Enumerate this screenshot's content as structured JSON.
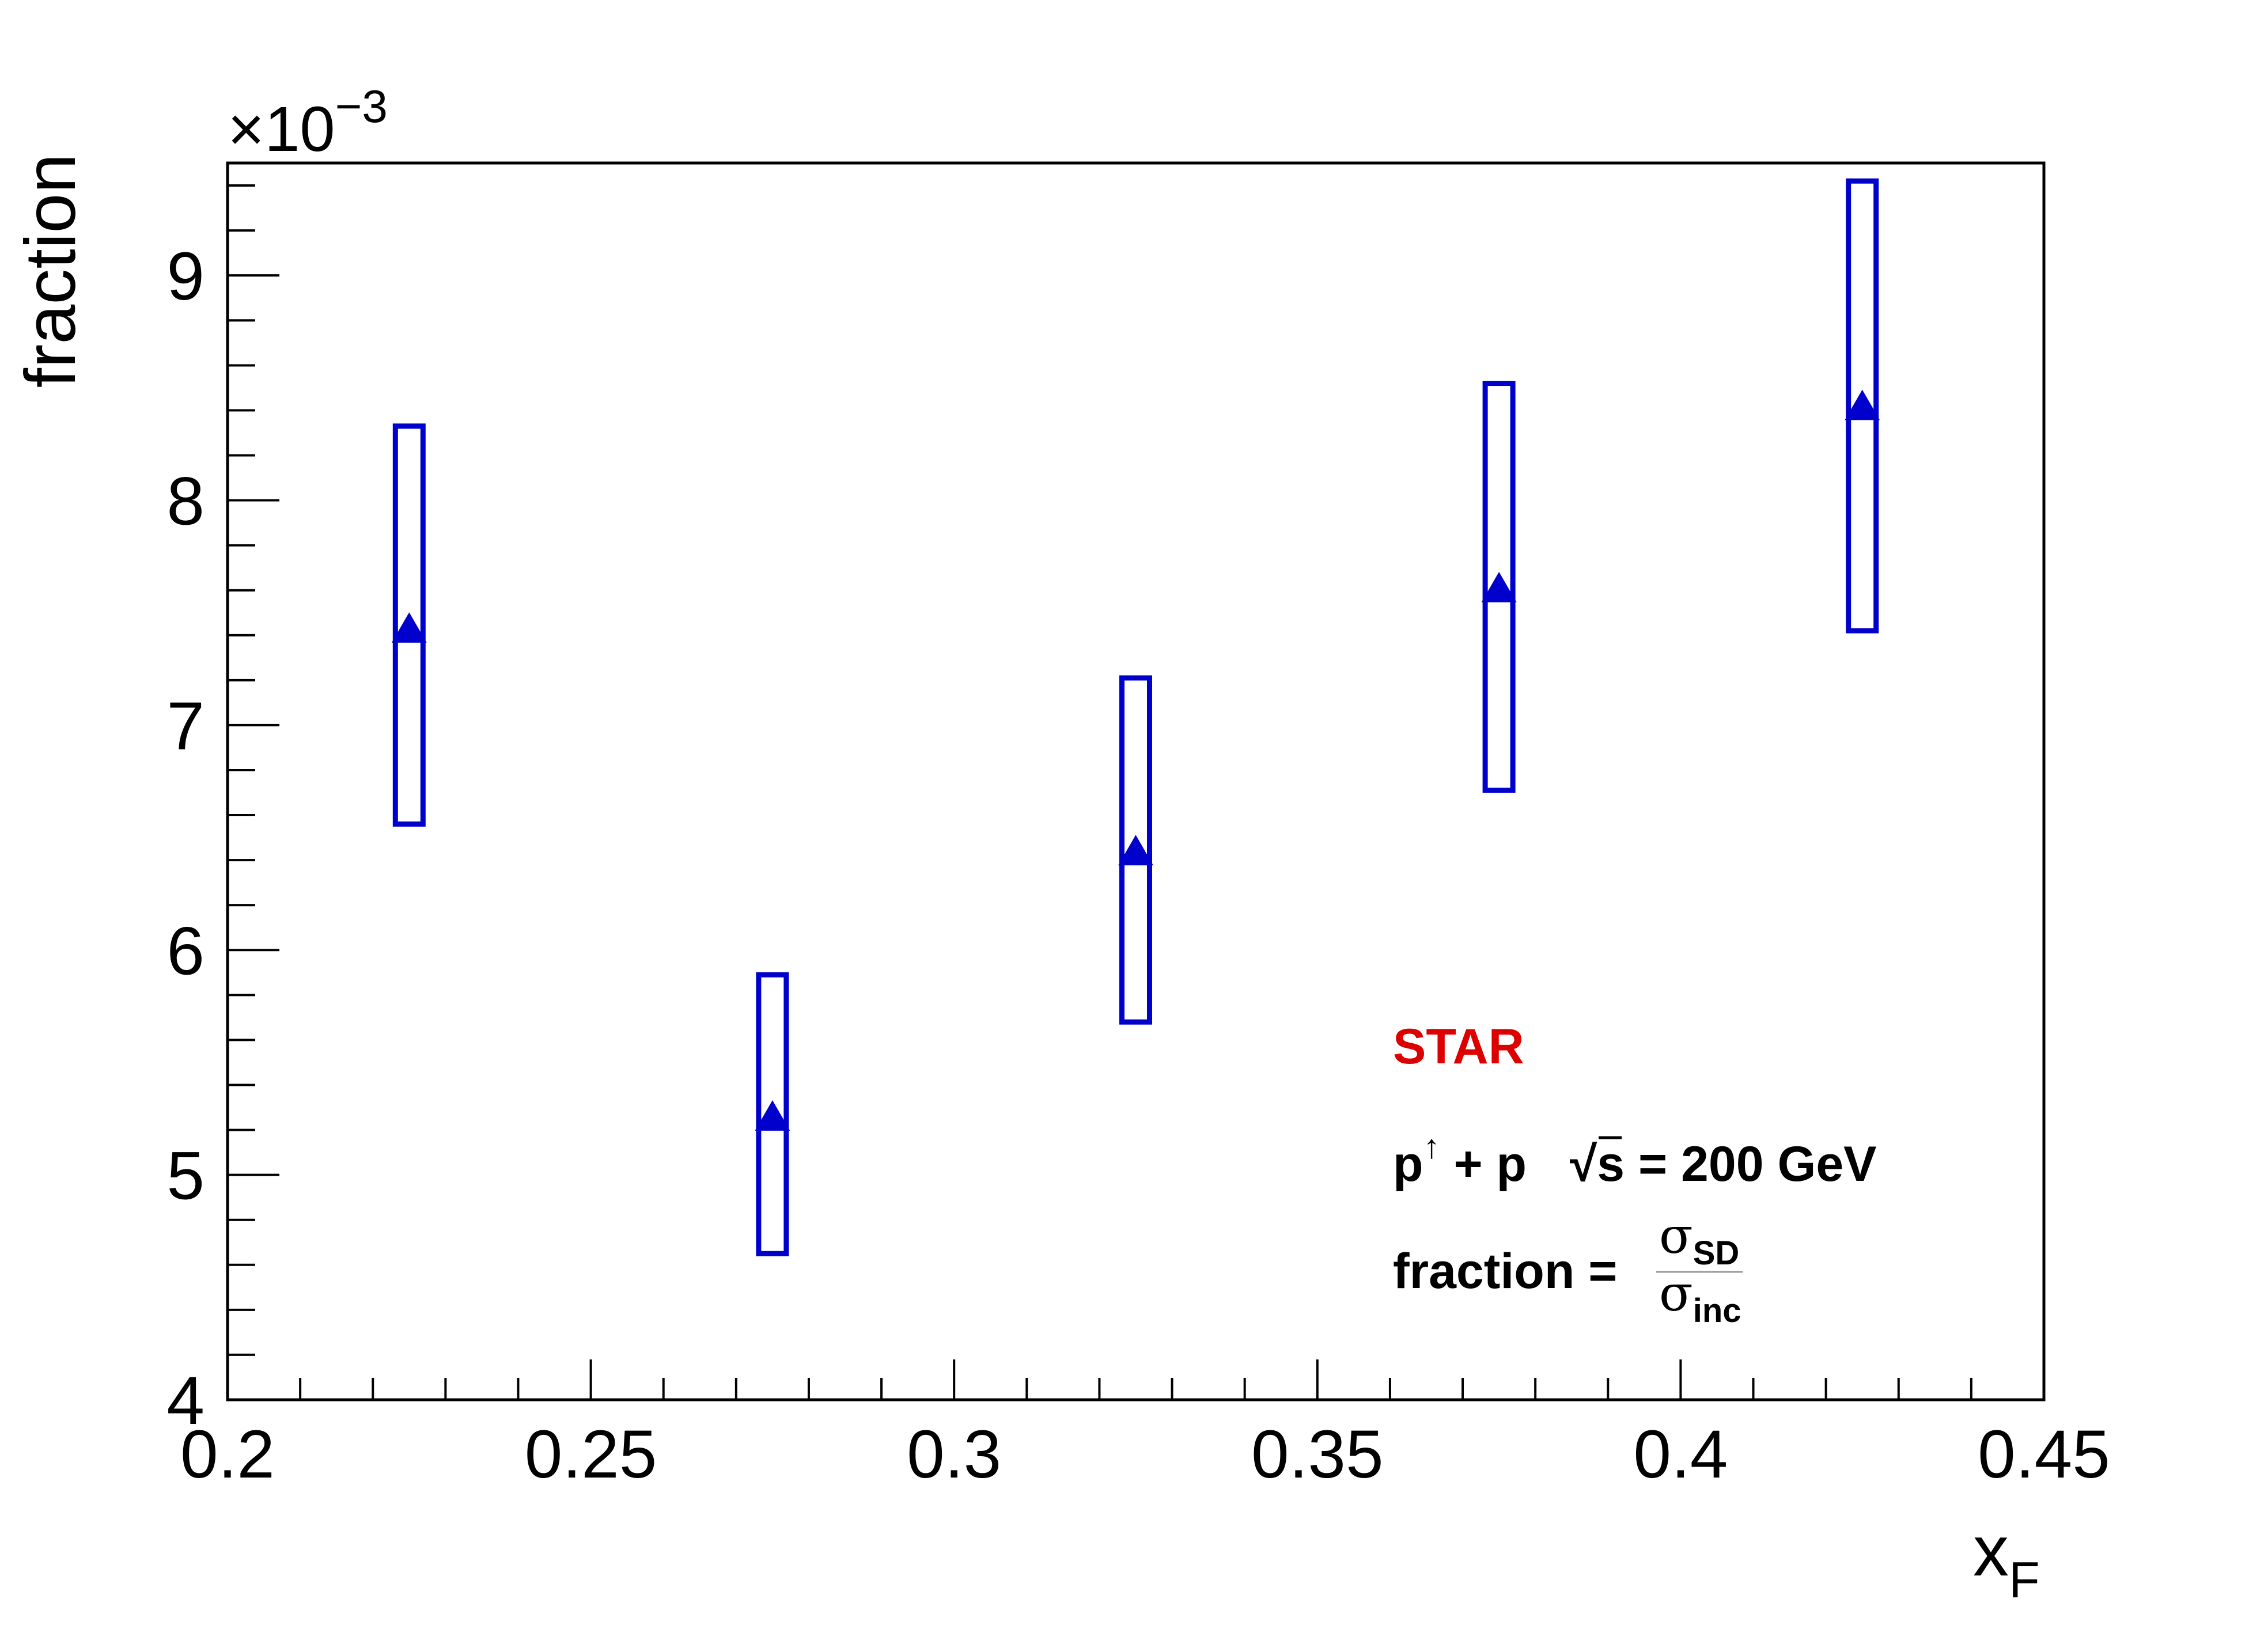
{
  "chart_data": {
    "type": "scatter",
    "xlabel_main": "x",
    "xlabel_sub": "F",
    "ylabel": "fraction",
    "y_exponent_label": "×10",
    "y_exponent_power": "−3",
    "xlim": [
      0.2,
      0.45
    ],
    "ylim": [
      4,
      9.5
    ],
    "x_ticks": [
      {
        "value": 0.2,
        "label": "0.2"
      },
      {
        "value": 0.25,
        "label": "0.25"
      },
      {
        "value": 0.3,
        "label": "0.3"
      },
      {
        "value": 0.35,
        "label": "0.35"
      },
      {
        "value": 0.4,
        "label": "0.4"
      },
      {
        "value": 0.45,
        "label": "0.45"
      }
    ],
    "y_ticks": [
      {
        "value": 4,
        "label": "4"
      },
      {
        "value": 5,
        "label": "5"
      },
      {
        "value": 6,
        "label": "6"
      },
      {
        "value": 7,
        "label": "7"
      },
      {
        "value": 8,
        "label": "8"
      },
      {
        "value": 9,
        "label": "9"
      }
    ],
    "grid": false,
    "series": [
      {
        "marker": "triangle-up",
        "color": "#0000cc",
        "points": [
          {
            "x": 0.225,
            "y": 7.42,
            "sys_low": 6.56,
            "sys_high": 8.33
          },
          {
            "x": 0.275,
            "y": 5.25,
            "sys_low": 4.65,
            "sys_high": 5.89
          },
          {
            "x": 0.325,
            "y": 6.43,
            "sys_low": 5.68,
            "sys_high": 7.21
          },
          {
            "x": 0.375,
            "y": 7.6,
            "sys_low": 6.71,
            "sys_high": 8.52
          },
          {
            "x": 0.425,
            "y": 8.41,
            "sys_low": 7.42,
            "sys_high": 9.42
          }
        ]
      }
    ],
    "annotations": {
      "experiment": "STAR",
      "experiment_color": "#dd0000",
      "collision_p": "p",
      "collision_arrow": "↑",
      "collision_rest": " + p",
      "sqrt_symbol": "√",
      "energy_s": "s",
      "energy_rest": " = 200 GeV",
      "fraction_label": "fraction =",
      "numerator_sigma": "σ",
      "numerator_sub": "SD",
      "denominator_sigma": "σ",
      "denominator_sub": "inc"
    }
  }
}
